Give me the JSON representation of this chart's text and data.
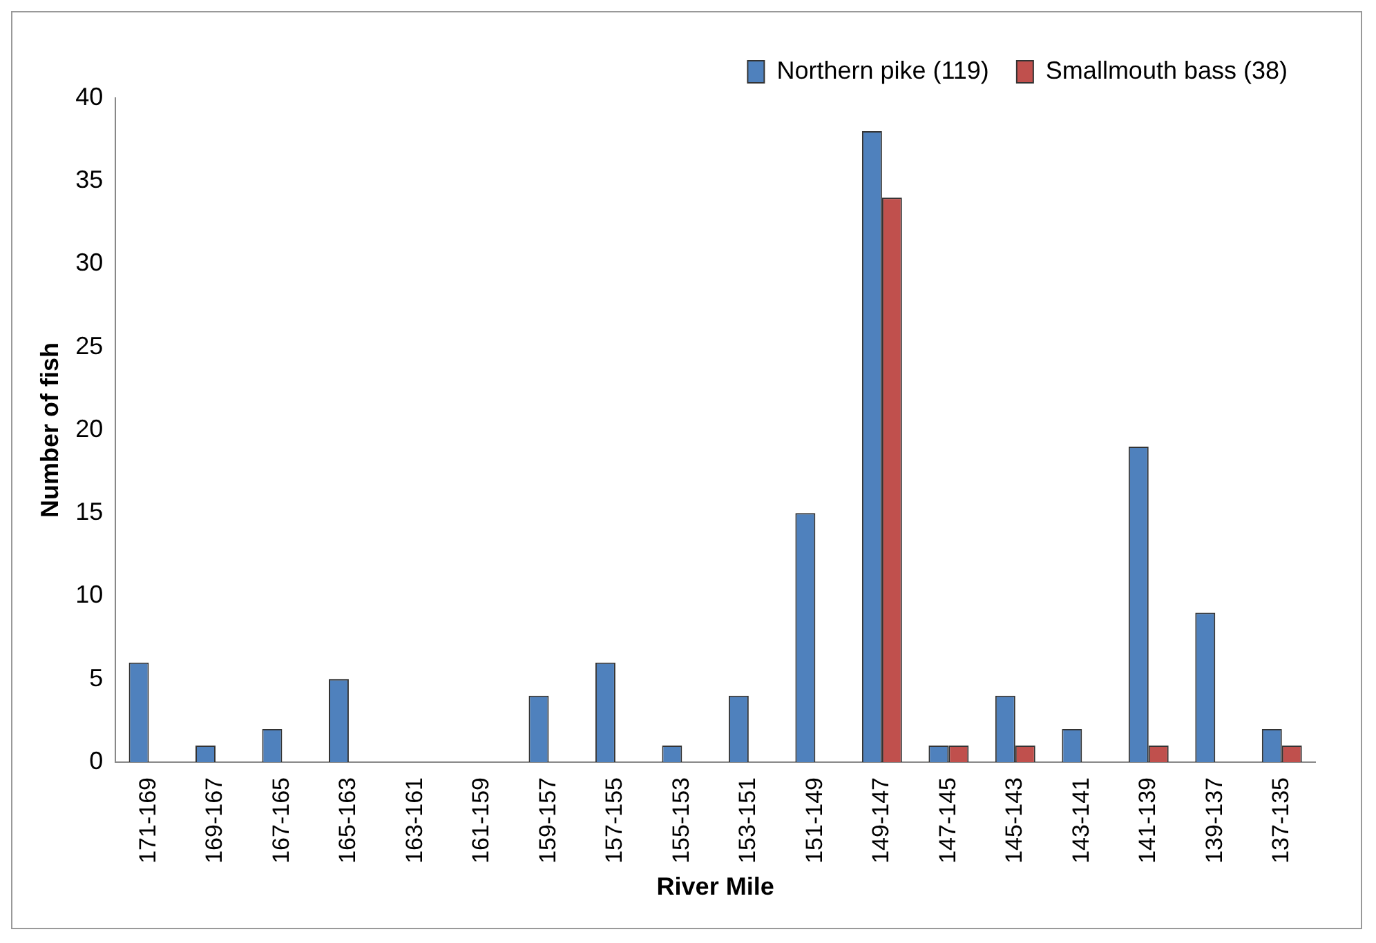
{
  "chart_data": {
    "type": "bar",
    "xlabel": "River Mile",
    "ylabel": "Number of fish",
    "categories": [
      "171-169",
      "169-167",
      "167-165",
      "165-163",
      "163-161",
      "161-159",
      "159-157",
      "157-155",
      "155-153",
      "153-151",
      "151-149",
      "149-147",
      "147-145",
      "145-143",
      "143-141",
      "141-139",
      "139-137",
      "137-135"
    ],
    "series": [
      {
        "name": "Northern pike (119)",
        "color": "#4f81bd",
        "values": [
          6,
          1,
          2,
          5,
          0,
          0,
          4,
          6,
          1,
          4,
          15,
          38,
          1,
          4,
          2,
          19,
          9,
          2
        ]
      },
      {
        "name": "Smallmouth bass (38)",
        "color": "#c0504d",
        "values": [
          0,
          0,
          0,
          0,
          0,
          0,
          0,
          0,
          0,
          0,
          0,
          34,
          1,
          1,
          0,
          1,
          0,
          1
        ]
      }
    ],
    "ylim": [
      0,
      40
    ],
    "yticks": [
      0,
      5,
      10,
      15,
      20,
      25,
      30,
      35,
      40
    ],
    "grid": false,
    "legend": "top right"
  }
}
